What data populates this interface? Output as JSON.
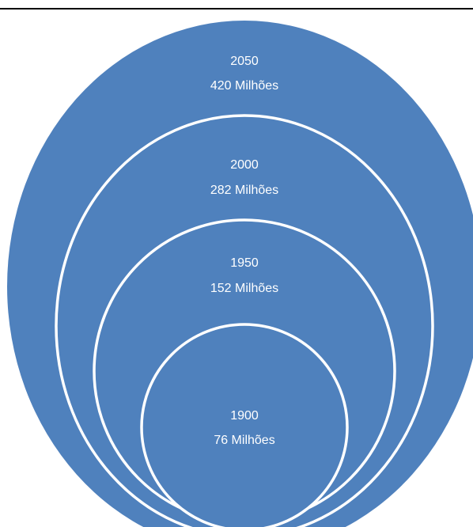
{
  "colors": {
    "fill": "#4f81bd",
    "stroke": "#ffffff",
    "text": "#ffffff",
    "rule": "#000000"
  },
  "rings": [
    {
      "year": "2050",
      "population": "420 Milhões"
    },
    {
      "year": "2000",
      "population": "282 Milhões"
    },
    {
      "year": "1950",
      "population": "152 Milhões"
    },
    {
      "year": "1900",
      "population": "76 Milhões"
    }
  ]
}
